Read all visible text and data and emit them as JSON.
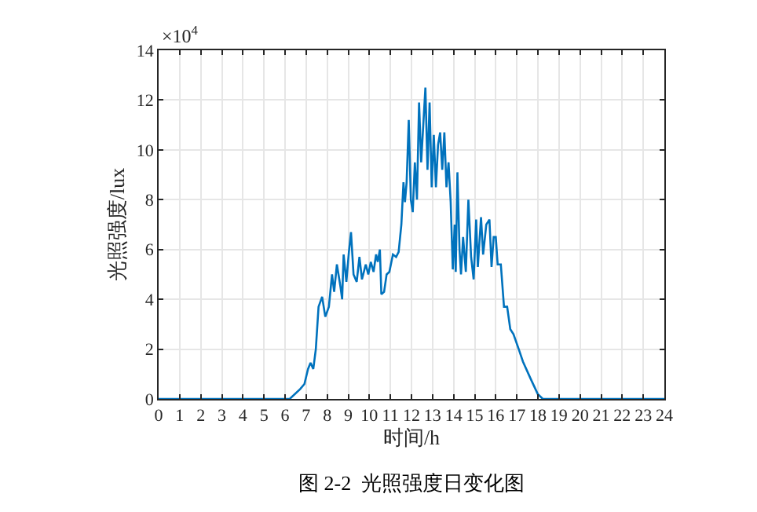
{
  "chart_data": {
    "type": "line",
    "title": "图 2-2  光照强度日变化图",
    "xlabel": "时间/h",
    "ylabel": "光照强度/lux",
    "annotations": [
      "×10$^{4}$"
    ],
    "x": [
      0,
      6.22,
      6.72,
      6.92,
      7.09,
      7.21,
      7.34,
      7.46,
      7.59,
      7.76,
      7.91,
      8.08,
      8.23,
      8.33,
      8.46,
      8.63,
      8.71,
      8.78,
      8.91,
      9.03,
      9.13,
      9.25,
      9.4,
      9.53,
      9.65,
      9.83,
      9.95,
      10.07,
      10.2,
      10.32,
      10.4,
      10.5,
      10.57,
      10.7,
      10.82,
      10.95,
      11.12,
      11.27,
      11.39,
      11.52,
      11.62,
      11.69,
      11.77,
      11.87,
      11.97,
      12.06,
      12.16,
      12.26,
      12.36,
      12.46,
      12.56,
      12.66,
      12.76,
      12.86,
      12.96,
      13.06,
      13.16,
      13.26,
      13.36,
      13.46,
      13.56,
      13.66,
      13.76,
      13.86,
      13.96,
      14.05,
      14.1,
      14.18,
      14.28,
      14.35,
      14.45,
      14.58,
      14.7,
      14.83,
      14.95,
      15.07,
      15.15,
      15.3,
      15.4,
      15.55,
      15.7,
      15.8,
      15.9,
      16.0,
      16.09,
      16.24,
      16.39,
      16.54,
      16.69,
      16.84,
      17.09,
      17.29,
      17.66,
      17.99,
      18.23,
      24
    ],
    "series": [
      {
        "color": "#0072bd",
        "values": [
          0,
          0,
          0.4,
          0.6,
          1.2,
          1.45,
          1.2,
          2.0,
          3.7,
          4.1,
          3.3,
          3.7,
          5.0,
          4.3,
          5.4,
          4.5,
          4.0,
          5.8,
          4.7,
          5.9,
          6.7,
          5.0,
          4.7,
          5.7,
          4.8,
          5.4,
          5.0,
          5.5,
          5.1,
          5.8,
          5.5,
          6.0,
          4.2,
          4.3,
          5.0,
          5.1,
          5.8,
          5.7,
          5.9,
          7.0,
          8.7,
          7.9,
          8.7,
          11.2,
          8.0,
          7.5,
          9.5,
          8.0,
          11.9,
          9.5,
          11.0,
          12.5,
          9.2,
          11.9,
          8.5,
          10.6,
          8.5,
          10.2,
          10.7,
          9.2,
          10.7,
          8.5,
          9.5,
          7.9,
          5.2,
          7.0,
          5.1,
          9.1,
          6.0,
          5.0,
          6.5,
          5.1,
          8.0,
          5.7,
          4.8,
          7.2,
          5.3,
          7.3,
          5.8,
          7.0,
          7.2,
          5.3,
          6.5,
          6.5,
          5.4,
          5.4,
          3.7,
          3.7,
          2.8,
          2.6,
          2.0,
          1.5,
          0.8,
          0.2,
          0,
          0
        ]
      }
    ],
    "xlim": [
      0,
      24
    ],
    "xticks": [
      0,
      1,
      2,
      3,
      4,
      5,
      6,
      7,
      8,
      9,
      10,
      11,
      12,
      13,
      14,
      15,
      16,
      17,
      18,
      19,
      20,
      21,
      22,
      23,
      24
    ],
    "ylim": [
      0,
      14
    ],
    "yticks": [
      0,
      2,
      4,
      6,
      8,
      10,
      12,
      14
    ],
    "grid": true,
    "line_style": "solid",
    "marker": "none"
  }
}
